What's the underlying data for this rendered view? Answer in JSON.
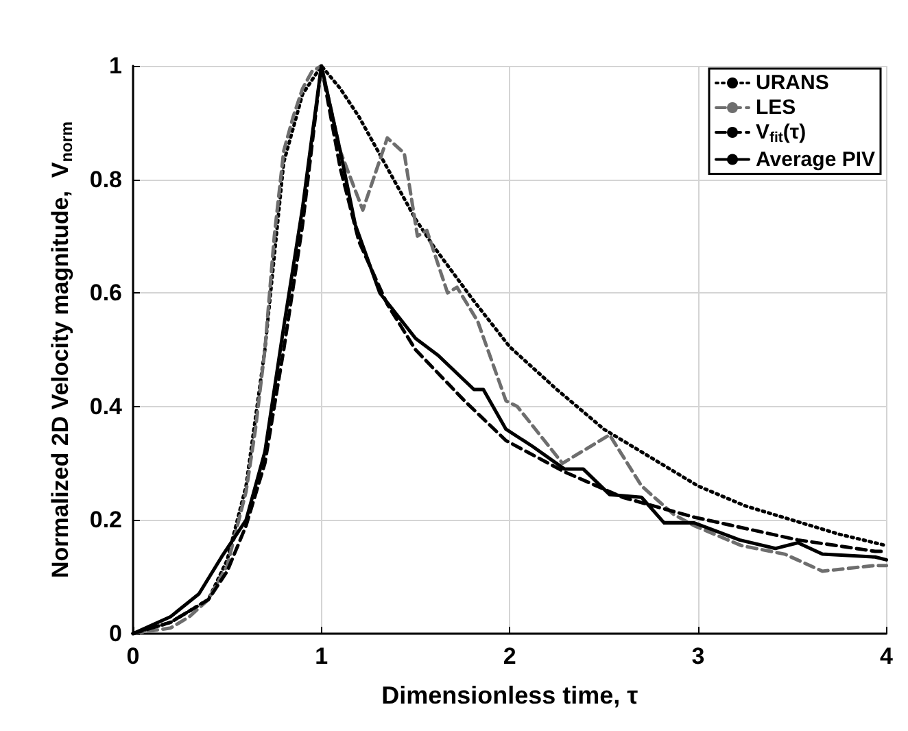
{
  "chart_data": {
    "type": "line",
    "xlabel": "Dimensionless time, τ",
    "ylabel": "Normalized 2D Velocity magnitude,  V$_{norm}$",
    "xlim": [
      0,
      4
    ],
    "ylim": [
      0,
      1
    ],
    "xticks": [
      0,
      1,
      2,
      3,
      4
    ],
    "yticks": [
      0,
      0.2,
      0.4,
      0.6,
      0.8,
      1
    ],
    "grid": true,
    "legend": "top right",
    "marker": "none",
    "series": [
      {
        "name": "URANS",
        "color": "#000000",
        "line_style": "dotted",
        "x": [
          0,
          0.2,
          0.4,
          0.5,
          0.6,
          0.7,
          0.8,
          0.9,
          1.0,
          1.1,
          1.2,
          1.3,
          1.4,
          1.5,
          1.6,
          1.8,
          2.0,
          2.25,
          2.5,
          2.75,
          3.0,
          3.25,
          3.5,
          3.75,
          4.0
        ],
        "values": [
          0,
          0.02,
          0.06,
          0.13,
          0.26,
          0.5,
          0.83,
          0.95,
          1,
          0.96,
          0.91,
          0.85,
          0.79,
          0.73,
          0.68,
          0.59,
          0.505,
          0.43,
          0.36,
          0.31,
          0.26,
          0.225,
          0.2,
          0.175,
          0.155
        ]
      },
      {
        "name": "LES",
        "color": "#6e6e6e",
        "line_style": "dashed",
        "x": [
          0,
          0.2,
          0.3,
          0.4,
          0.5,
          0.6,
          0.65,
          0.7,
          0.75,
          0.8,
          0.85,
          0.9,
          0.95,
          1.0,
          1.1,
          1.22,
          1.35,
          1.44,
          1.51,
          1.56,
          1.67,
          1.72,
          1.83,
          1.98,
          2.04,
          2.28,
          2.53,
          2.7,
          2.87,
          2.98,
          3.23,
          3.46,
          3.66,
          3.94,
          4.0
        ],
        "values": [
          0,
          0.01,
          0.03,
          0.06,
          0.12,
          0.25,
          0.36,
          0.5,
          0.7,
          0.85,
          0.91,
          0.96,
          0.99,
          1,
          0.85,
          0.746,
          0.873,
          0.846,
          0.7,
          0.71,
          0.6,
          0.61,
          0.55,
          0.41,
          0.4,
          0.3,
          0.35,
          0.26,
          0.21,
          0.19,
          0.155,
          0.14,
          0.11,
          0.12,
          0.12
        ]
      },
      {
        "name": "V$_{fit}$(τ)",
        "color": "#000000",
        "line_style": "dashed",
        "x": [
          0,
          0.2,
          0.4,
          0.5,
          0.6,
          0.7,
          0.8,
          0.9,
          1.0,
          1.1,
          1.2,
          1.35,
          1.5,
          1.76,
          1.98,
          2.29,
          2.6,
          2.98,
          3.53,
          3.94,
          4.0
        ],
        "values": [
          0,
          0.02,
          0.06,
          0.11,
          0.19,
          0.3,
          0.5,
          0.72,
          1,
          0.82,
          0.69,
          0.58,
          0.5,
          0.41,
          0.34,
          0.285,
          0.24,
          0.205,
          0.165,
          0.145,
          0.145
        ]
      },
      {
        "name": "Average PIV",
        "color": "#000000",
        "line_style": "solid",
        "x": [
          0,
          0.2,
          0.35,
          0.47,
          0.6,
          0.7,
          0.8,
          0.9,
          1.0,
          1.1,
          1.18,
          1.31,
          1.5,
          1.62,
          1.81,
          1.86,
          1.98,
          2.12,
          2.29,
          2.39,
          2.53,
          2.7,
          2.82,
          2.98,
          3.22,
          3.41,
          3.53,
          3.66,
          3.94,
          4.0
        ],
        "values": [
          0,
          0.03,
          0.07,
          0.135,
          0.2,
          0.32,
          0.54,
          0.75,
          1,
          0.85,
          0.72,
          0.6,
          0.52,
          0.49,
          0.43,
          0.43,
          0.36,
          0.33,
          0.29,
          0.29,
          0.245,
          0.24,
          0.195,
          0.195,
          0.165,
          0.15,
          0.16,
          0.14,
          0.135,
          0.13
        ]
      }
    ]
  }
}
